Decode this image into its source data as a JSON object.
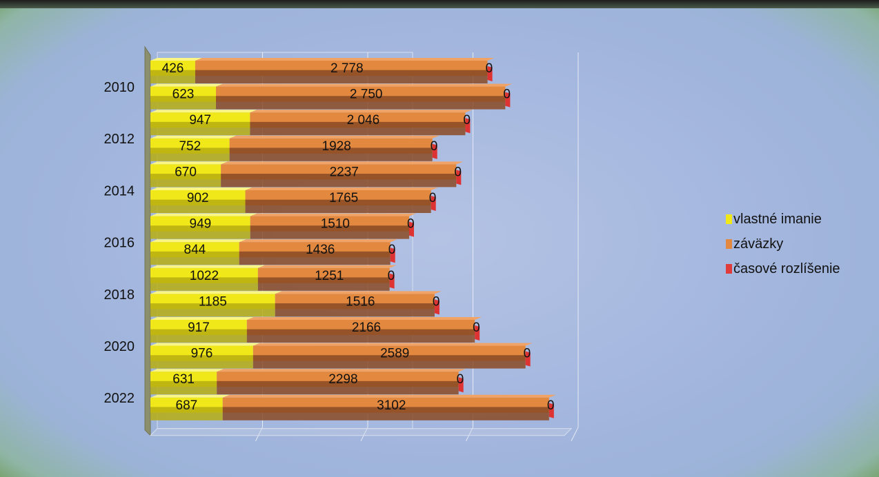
{
  "chart_data": {
    "type": "bar",
    "orientation": "horizontal",
    "stacked": true,
    "style": "3d",
    "y_tick_labels": [
      "2010",
      "2012",
      "2014",
      "2016",
      "2018",
      "2020",
      "2022"
    ],
    "rows": [
      {
        "label": "426",
        "values": [
          426,
          2778,
          0
        ],
        "labels": [
          "426",
          "2 778",
          "0"
        ]
      },
      {
        "label": "623",
        "values": [
          623,
          2750,
          0
        ],
        "labels": [
          "623",
          "2 750",
          "0"
        ]
      },
      {
        "label": "947",
        "values": [
          947,
          2046,
          0
        ],
        "labels": [
          "947",
          "2 046",
          "0"
        ]
      },
      {
        "label": "752",
        "values": [
          752,
          1928,
          0
        ],
        "labels": [
          "752",
          "1928",
          "0"
        ]
      },
      {
        "label": "670",
        "values": [
          670,
          2237,
          0
        ],
        "labels": [
          "670",
          "2237",
          "0"
        ]
      },
      {
        "label": "902",
        "values": [
          902,
          1765,
          0
        ],
        "labels": [
          "902",
          "1765",
          "0"
        ]
      },
      {
        "label": "949",
        "values": [
          949,
          1510,
          0
        ],
        "labels": [
          "949",
          "1510",
          "0"
        ]
      },
      {
        "label": "844",
        "values": [
          844,
          1436,
          0
        ],
        "labels": [
          "844",
          "1436",
          "0"
        ]
      },
      {
        "label": "1022",
        "values": [
          1022,
          1251,
          0
        ],
        "labels": [
          "1022",
          "1251",
          "0"
        ]
      },
      {
        "label": "1185",
        "values": [
          1185,
          1516,
          0
        ],
        "labels": [
          "1185",
          "1516",
          "0"
        ]
      },
      {
        "label": "917",
        "values": [
          917,
          2166,
          0
        ],
        "labels": [
          "917",
          "2166",
          "0"
        ]
      },
      {
        "label": "976",
        "values": [
          976,
          2589,
          0
        ],
        "labels": [
          "976",
          "2589",
          "0"
        ]
      },
      {
        "label": "631",
        "values": [
          631,
          2298,
          0
        ],
        "labels": [
          "631",
          "2298",
          "0"
        ]
      },
      {
        "label": "687",
        "values": [
          687,
          3102,
          0
        ],
        "labels": [
          "687",
          "3102",
          "0"
        ]
      }
    ],
    "series": [
      {
        "name": "vlastné imanie",
        "color": "#f0e818"
      },
      {
        "name": "záväzky",
        "color": "#e3893f"
      },
      {
        "name": "časové rozlíšenie",
        "color": "#e03c3c"
      }
    ],
    "xlim": [
      0,
      4000
    ],
    "grid": true,
    "legend_position": "right"
  }
}
